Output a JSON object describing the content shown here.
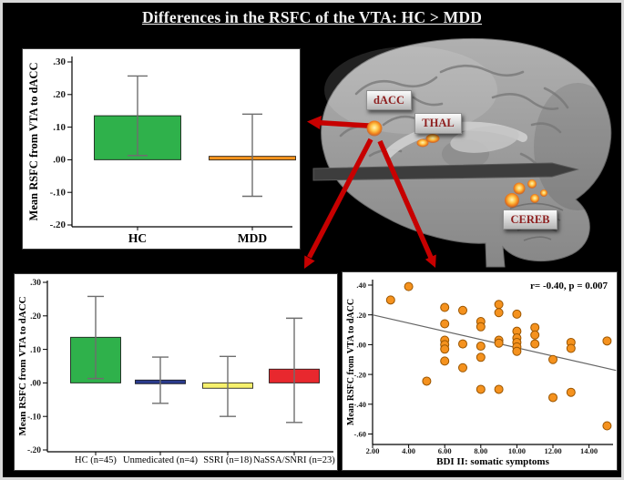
{
  "figure": {
    "title": "Differences in the RSFC of the VTA: HC > MDD",
    "colors": {
      "arrow_red": "#c70000",
      "region_label_text": "#8e1f1f",
      "error_bar_gray": "#6e6e6e",
      "panel_background": "#ffffff"
    }
  },
  "brain": {
    "labels": [
      "dACC",
      "THAL",
      "CEREB"
    ]
  },
  "chart_data": [
    {
      "id": "hc_vs_mdd",
      "type": "bar",
      "title": "",
      "ylabel": "Mean RSFC from VTA to dACC",
      "ylim": [
        -0.22,
        0.32
      ],
      "yticks": [
        {
          "v": 0.3,
          "label": ".30"
        },
        {
          "v": 0.2,
          "label": ".20"
        },
        {
          "v": 0.1,
          "label": ".10"
        },
        {
          "v": 0.0,
          "label": ".00"
        },
        {
          "v": -0.1,
          "label": "-.10"
        },
        {
          "v": -0.2,
          "label": "-.20"
        }
      ],
      "bars": [
        {
          "label": "HC",
          "value": 0.135,
          "err_low": 0.013,
          "err_high": 0.257,
          "color": "#2fb14b"
        },
        {
          "label": "MDD",
          "value": 0.01,
          "err_low": -0.112,
          "err_high": 0.14,
          "color": "#f7941e"
        }
      ]
    },
    {
      "id": "by_medication",
      "type": "bar",
      "title": "",
      "ylabel": "Mean RSFC from VTA to dACC",
      "ylim": [
        -0.22,
        0.32
      ],
      "yticks": [
        {
          "v": 0.3,
          "label": ".30"
        },
        {
          "v": 0.2,
          "label": ".20"
        },
        {
          "v": 0.1,
          "label": ".10"
        },
        {
          "v": 0.0,
          "label": ".00"
        },
        {
          "v": -0.1,
          "label": "-.10"
        },
        {
          "v": -0.2,
          "label": "-.20"
        }
      ],
      "bars": [
        {
          "label": "HC (n=45)",
          "value": 0.136,
          "err_low": 0.013,
          "err_high": 0.258,
          "color": "#2fb14b"
        },
        {
          "label": "Unmedicated (n=4)",
          "value": 0.006,
          "err_low": -0.061,
          "err_high": 0.077,
          "color": "#2b3c8e"
        },
        {
          "label": "SSRI (n=18)",
          "value": -0.016,
          "err_low": -0.1,
          "err_high": 0.079,
          "color": "#f7f16d"
        },
        {
          "label": "NaSSA/SNRI (n=23)",
          "value": 0.041,
          "err_low": -0.118,
          "err_high": 0.193,
          "color": "#e8282e"
        }
      ]
    },
    {
      "id": "bdi_correlation",
      "type": "scatter",
      "annotation": "r= -0.40, p = 0.007",
      "xlabel": "BDI II: somatic symptoms",
      "ylabel": "Mean RSFC from VTA to dACC",
      "xlim": [
        2,
        15.5
      ],
      "ylim": [
        -0.68,
        0.44
      ],
      "xticks": [
        {
          "v": 2,
          "label": "2.00"
        },
        {
          "v": 4,
          "label": "4.00"
        },
        {
          "v": 6,
          "label": "6.00"
        },
        {
          "v": 8,
          "label": "8.00"
        },
        {
          "v": 10,
          "label": "10.00"
        },
        {
          "v": 12,
          "label": "12.00"
        },
        {
          "v": 14,
          "label": "14.00"
        }
      ],
      "yticks": [
        {
          "v": 0.4,
          "label": ".40"
        },
        {
          "v": 0.2,
          "label": ".20"
        },
        {
          "v": 0.0,
          "label": ".00"
        },
        {
          "v": -0.2,
          "label": "-.20"
        },
        {
          "v": -0.4,
          "label": "-.40"
        },
        {
          "v": -0.6,
          "label": "-.60"
        }
      ],
      "point_color": "#f5921e",
      "fit_line": {
        "x1": 2.0,
        "y1": 0.2,
        "x2": 15.5,
        "y2": -0.173
      },
      "points": [
        [
          3,
          0.3
        ],
        [
          4,
          0.39
        ],
        [
          5,
          -0.245
        ],
        [
          6,
          0.25
        ],
        [
          6,
          0.14
        ],
        [
          6,
          0.03
        ],
        [
          6,
          0.0
        ],
        [
          6,
          -0.03
        ],
        [
          6,
          -0.11
        ],
        [
          7,
          0.23
        ],
        [
          7,
          0.005
        ],
        [
          7,
          -0.155
        ],
        [
          8,
          0.155
        ],
        [
          8,
          0.12
        ],
        [
          8,
          -0.01
        ],
        [
          8,
          -0.085
        ],
        [
          8,
          -0.3
        ],
        [
          9,
          0.27
        ],
        [
          9,
          0.215
        ],
        [
          9,
          0.03
        ],
        [
          9,
          0.01
        ],
        [
          9,
          -0.3
        ],
        [
          10,
          0.205
        ],
        [
          10,
          0.09
        ],
        [
          10,
          0.045
        ],
        [
          10,
          0.015
        ],
        [
          10,
          -0.015
        ],
        [
          10,
          -0.045
        ],
        [
          11,
          0.115
        ],
        [
          11,
          0.065
        ],
        [
          11,
          0.005
        ],
        [
          12,
          -0.1
        ],
        [
          12,
          -0.355
        ],
        [
          13,
          0.015
        ],
        [
          13,
          -0.025
        ],
        [
          13,
          -0.32
        ],
        [
          15,
          0.025
        ],
        [
          15,
          -0.545
        ]
      ]
    }
  ]
}
